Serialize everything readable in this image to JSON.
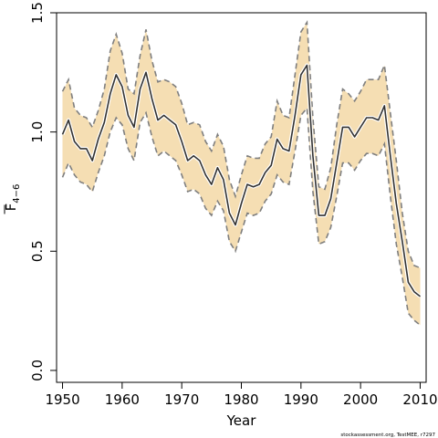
{
  "chart_data": {
    "type": "line",
    "xlabel": "Year",
    "ylabel_main": "F",
    "ylabel_sub": "4−6",
    "xlim": [
      1949,
      2011
    ],
    "ylim": [
      -0.05,
      1.5
    ],
    "xticks": [
      1950,
      1960,
      1970,
      1980,
      1990,
      2000,
      2010
    ],
    "yticks": [
      "0.0",
      "0.5",
      "1.0",
      "1.5"
    ],
    "credit": "stockassessment.org, TestMEE, r7297",
    "colors": {
      "band": "#f5deb3",
      "bound": "#7f7f7f",
      "estimate": "#333333",
      "estimate_halo": "#ffffff"
    },
    "x": [
      1950,
      1951,
      1952,
      1953,
      1954,
      1955,
      1956,
      1957,
      1958,
      1959,
      1960,
      1961,
      1962,
      1963,
      1964,
      1965,
      1966,
      1967,
      1968,
      1969,
      1970,
      1971,
      1972,
      1973,
      1974,
      1975,
      1976,
      1977,
      1978,
      1979,
      1980,
      1981,
      1982,
      1983,
      1984,
      1985,
      1986,
      1987,
      1988,
      1989,
      1990,
      1991,
      1992,
      1993,
      1994,
      1995,
      1996,
      1997,
      1998,
      1999,
      2000,
      2001,
      2002,
      2003,
      2004,
      2005,
      2006,
      2007,
      2008,
      2009,
      2010
    ],
    "series": [
      {
        "role": "estimate",
        "values": [
          0.99,
          1.05,
          0.96,
          0.93,
          0.93,
          0.88,
          0.97,
          1.04,
          1.16,
          1.24,
          1.19,
          1.07,
          1.02,
          1.18,
          1.25,
          1.14,
          1.05,
          1.07,
          1.05,
          1.03,
          0.96,
          0.88,
          0.9,
          0.88,
          0.82,
          0.78,
          0.85,
          0.8,
          0.66,
          0.61,
          0.7,
          0.78,
          0.77,
          0.78,
          0.83,
          0.86,
          0.97,
          0.93,
          0.92,
          1.07,
          1.24,
          1.28,
          0.9,
          0.65,
          0.65,
          0.72,
          0.87,
          1.02,
          1.02,
          0.98,
          1.02,
          1.06,
          1.06,
          1.05,
          1.11,
          0.9,
          0.7,
          0.54,
          0.37,
          0.33,
          0.31
        ]
      },
      {
        "role": "upper",
        "values": [
          1.17,
          1.22,
          1.1,
          1.07,
          1.06,
          1.02,
          1.09,
          1.18,
          1.34,
          1.41,
          1.33,
          1.18,
          1.16,
          1.32,
          1.43,
          1.3,
          1.21,
          1.22,
          1.21,
          1.19,
          1.12,
          1.03,
          1.04,
          1.03,
          0.96,
          0.92,
          0.99,
          0.94,
          0.8,
          0.73,
          0.82,
          0.9,
          0.89,
          0.89,
          0.95,
          0.98,
          1.13,
          1.07,
          1.06,
          1.24,
          1.42,
          1.46,
          1.06,
          0.77,
          0.76,
          0.85,
          1.03,
          1.18,
          1.16,
          1.13,
          1.17,
          1.22,
          1.22,
          1.22,
          1.28,
          1.08,
          0.88,
          0.66,
          0.5,
          0.44,
          0.43
        ]
      },
      {
        "role": "lower",
        "values": [
          0.81,
          0.87,
          0.82,
          0.79,
          0.78,
          0.75,
          0.83,
          0.9,
          1.0,
          1.06,
          1.03,
          0.93,
          0.88,
          1.04,
          1.08,
          0.98,
          0.9,
          0.92,
          0.9,
          0.88,
          0.82,
          0.75,
          0.76,
          0.74,
          0.68,
          0.65,
          0.71,
          0.67,
          0.54,
          0.5,
          0.58,
          0.66,
          0.65,
          0.66,
          0.71,
          0.74,
          0.82,
          0.79,
          0.78,
          0.92,
          1.07,
          1.1,
          0.75,
          0.53,
          0.54,
          0.6,
          0.73,
          0.87,
          0.87,
          0.84,
          0.88,
          0.91,
          0.91,
          0.9,
          0.95,
          0.73,
          0.53,
          0.39,
          0.24,
          0.21,
          0.19
        ]
      }
    ]
  }
}
